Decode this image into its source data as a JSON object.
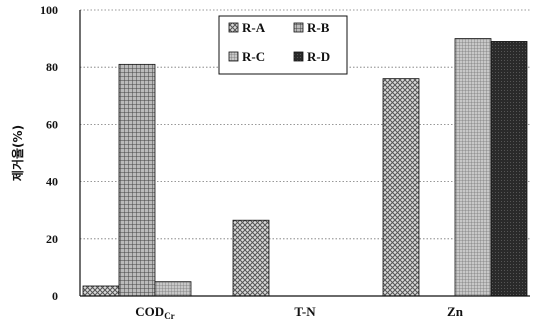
{
  "chart_data": {
    "type": "bar",
    "title": "",
    "xlabel": "",
    "ylabel": "제거율(%)",
    "categories": [
      "COD",
      "T-N",
      "Zn"
    ],
    "category_subscripts": [
      "Cr",
      "",
      ""
    ],
    "ylim": [
      0,
      100
    ],
    "yticks": [
      "0",
      "20",
      "40",
      "60",
      "80",
      "100"
    ],
    "grid": "horizontal-dotted",
    "legend_position": "top-center",
    "series": [
      {
        "name": "R-A",
        "values": [
          3.5,
          26.5,
          76
        ],
        "color": "#bfbfbf",
        "pattern": "crosshatch"
      },
      {
        "name": "R-B",
        "values": [
          81,
          0,
          0
        ],
        "color": "#8a8a8a",
        "pattern": "grid"
      },
      {
        "name": "R-C",
        "values": [
          5,
          0,
          90
        ],
        "color": "#a6a6a6",
        "pattern": "fine-grid"
      },
      {
        "name": "R-D",
        "values": [
          0,
          0,
          89
        ],
        "color": "#262626",
        "pattern": "solid-dark"
      }
    ]
  }
}
